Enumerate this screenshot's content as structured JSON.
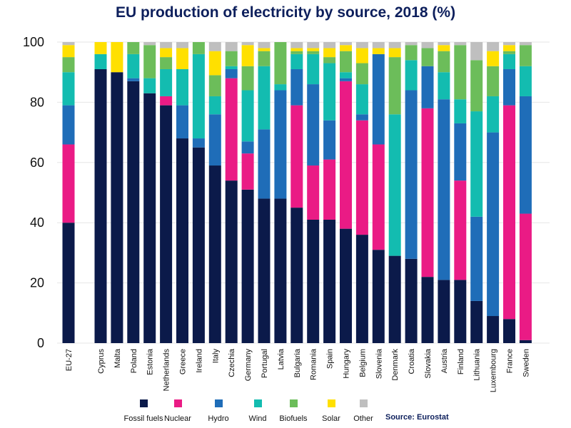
{
  "chart_data": {
    "type": "bar",
    "stacked": true,
    "title": "EU production of electricity by source, 2018 (%)",
    "source": "Source: Eurostat",
    "ylim": [
      0,
      100
    ],
    "yticks": [
      0,
      20,
      40,
      60,
      80,
      100
    ],
    "grid": true,
    "legend_position": "bottom",
    "categories": [
      "EU-27",
      "Cyprus",
      "Malta",
      "Poland",
      "Estonia",
      "Netherlands",
      "Greece",
      "Ireland",
      "Italy",
      "Czechia",
      "Germany",
      "Portugal",
      "Latvia",
      "Bulgaria",
      "Romania",
      "Spain",
      "Hungary",
      "Belgium",
      "Slovenia",
      "Denmark",
      "Croatia",
      "Slovakia",
      "Austria",
      "Finland",
      "Lithuania",
      "Luxembourg",
      "France",
      "Sweden"
    ],
    "series": [
      {
        "name": "Fossil fuels",
        "color": "#0b1a4a",
        "values": [
          40,
          91,
          90,
          87,
          83,
          79,
          68,
          65,
          59,
          54,
          51,
          48,
          48,
          45,
          41,
          41,
          38,
          36,
          31,
          29,
          28,
          22,
          21,
          21,
          14,
          9,
          8,
          1
        ]
      },
      {
        "name": "Nuclear",
        "color": "#ea1b85",
        "values": [
          26,
          0,
          0,
          0,
          0,
          3,
          0,
          0,
          0,
          34,
          12,
          0,
          0,
          34,
          18,
          20,
          49,
          38,
          35,
          0,
          0,
          56,
          0,
          33,
          0,
          0,
          71,
          42
        ]
      },
      {
        "name": "Hydro",
        "color": "#1f6db8",
        "values": [
          13,
          0,
          0,
          1,
          0,
          0,
          11,
          3,
          17,
          3,
          4,
          23,
          36,
          12,
          27,
          13,
          1,
          2,
          30,
          0,
          56,
          14,
          60,
          19,
          28,
          61,
          12,
          39
        ]
      },
      {
        "name": "Wind",
        "color": "#13bcb0",
        "values": [
          11,
          5,
          0,
          8,
          5,
          9,
          12,
          28,
          6,
          1,
          17,
          21,
          2,
          5,
          10,
          19,
          2,
          10,
          0,
          47,
          10,
          0,
          9,
          8,
          35,
          12,
          5,
          10
        ]
      },
      {
        "name": "Biofuels",
        "color": "#6cbd5a",
        "values": [
          5,
          0,
          0,
          4,
          11,
          4,
          0,
          4,
          7,
          5,
          8,
          5,
          14,
          1,
          1,
          2,
          7,
          7,
          0,
          19,
          5,
          6,
          7,
          18,
          17,
          10,
          1,
          7
        ]
      },
      {
        "name": "Solar",
        "color": "#ffe000",
        "values": [
          4,
          4,
          10,
          0,
          0,
          3,
          7,
          0,
          8,
          0,
          7,
          1,
          0,
          1,
          1,
          3,
          2,
          5,
          2,
          3,
          0,
          0,
          2,
          0,
          0,
          5,
          2,
          0
        ]
      },
      {
        "name": "Other",
        "color": "#bfbfbf",
        "values": [
          1,
          0,
          0,
          0,
          1,
          2,
          2,
          0,
          3,
          3,
          1,
          2,
          0,
          2,
          2,
          2,
          1,
          2,
          2,
          2,
          1,
          2,
          1,
          1,
          6,
          3,
          1,
          1
        ]
      }
    ]
  }
}
